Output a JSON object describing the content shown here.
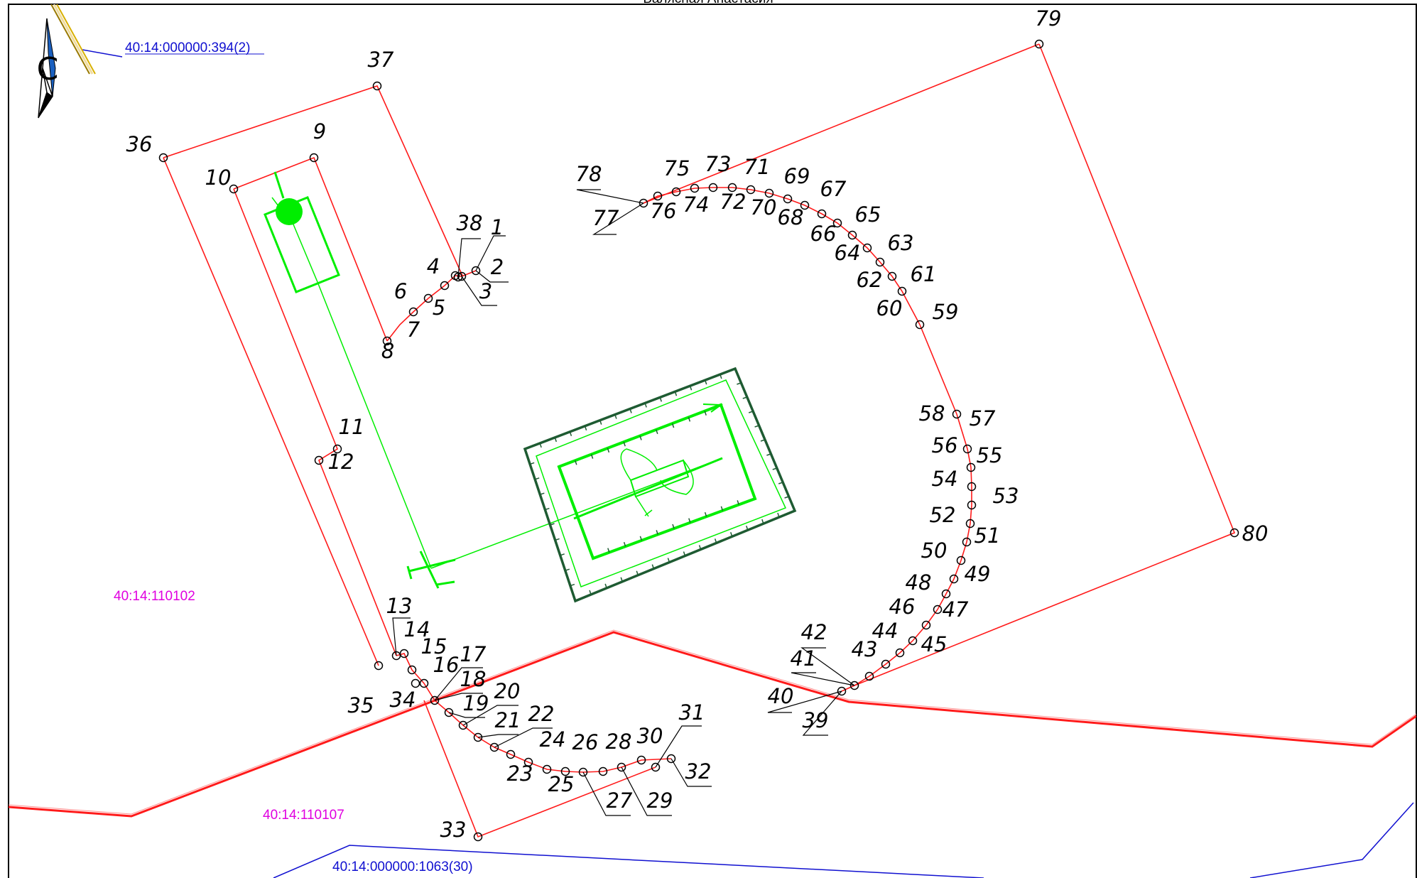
{
  "map_title": "Балясная Анастасия",
  "north_arrow_letter": "С",
  "cadastral_labels": {
    "parcel_394": "40:14:000000:394(2)",
    "quarter_110102": "40:14:110102",
    "quarter_110107": "40:14:110107",
    "parcel_1063": "40:14:000000:1063(30)"
  },
  "colors": {
    "boundary": "#ff1a1a",
    "structure_green": "#00ee00",
    "structure_dark_green": "#1e5b32",
    "parcel_blue": "#1010d0",
    "quarter_magenta": "#e000e0",
    "point_labels": "#000000"
  },
  "point_labels": {
    "p1": "1",
    "p2": "2",
    "p3": "3",
    "p4": "4",
    "p5": "5",
    "p6": "6",
    "p7": "7",
    "p8": "8",
    "p9": "9",
    "p10": "10",
    "p11": "11",
    "p12": "12",
    "p13": "13",
    "p14": "14",
    "p15": "15",
    "p16": "16",
    "p17": "17",
    "p18": "18",
    "p19": "19",
    "p20": "20",
    "p21": "21",
    "p22": "22",
    "p23": "23",
    "p24": "24",
    "p25": "25",
    "p26": "26",
    "p27": "27",
    "p28": "28",
    "p29": "29",
    "p30": "30",
    "p31": "31",
    "p32": "32",
    "p33": "33",
    "p34": "34",
    "p35": "35",
    "p36": "36",
    "p37": "37",
    "p38": "38",
    "p39": "39",
    "p40": "40",
    "p41": "41",
    "p42": "42",
    "p43": "43",
    "p44": "44",
    "p45": "45",
    "p46": "46",
    "p47": "47",
    "p48": "48",
    "p49": "49",
    "p50": "50",
    "p51": "51",
    "p52": "52",
    "p53": "53",
    "p54": "54",
    "p55": "55",
    "p56": "56",
    "p57": "57",
    "p58": "58",
    "p59": "59",
    "p60": "60",
    "p61": "61",
    "p62": "62",
    "p63": "63",
    "p64": "64",
    "p65": "65",
    "p66": "66",
    "p67": "67",
    "p68": "68",
    "p69": "69",
    "p70": "70",
    "p71": "71",
    "p72": "72",
    "p73": "73",
    "p74": "74",
    "p75": "75",
    "p76": "76",
    "p77": "77",
    "p78": "78",
    "p79": "79",
    "p80": "80"
  }
}
